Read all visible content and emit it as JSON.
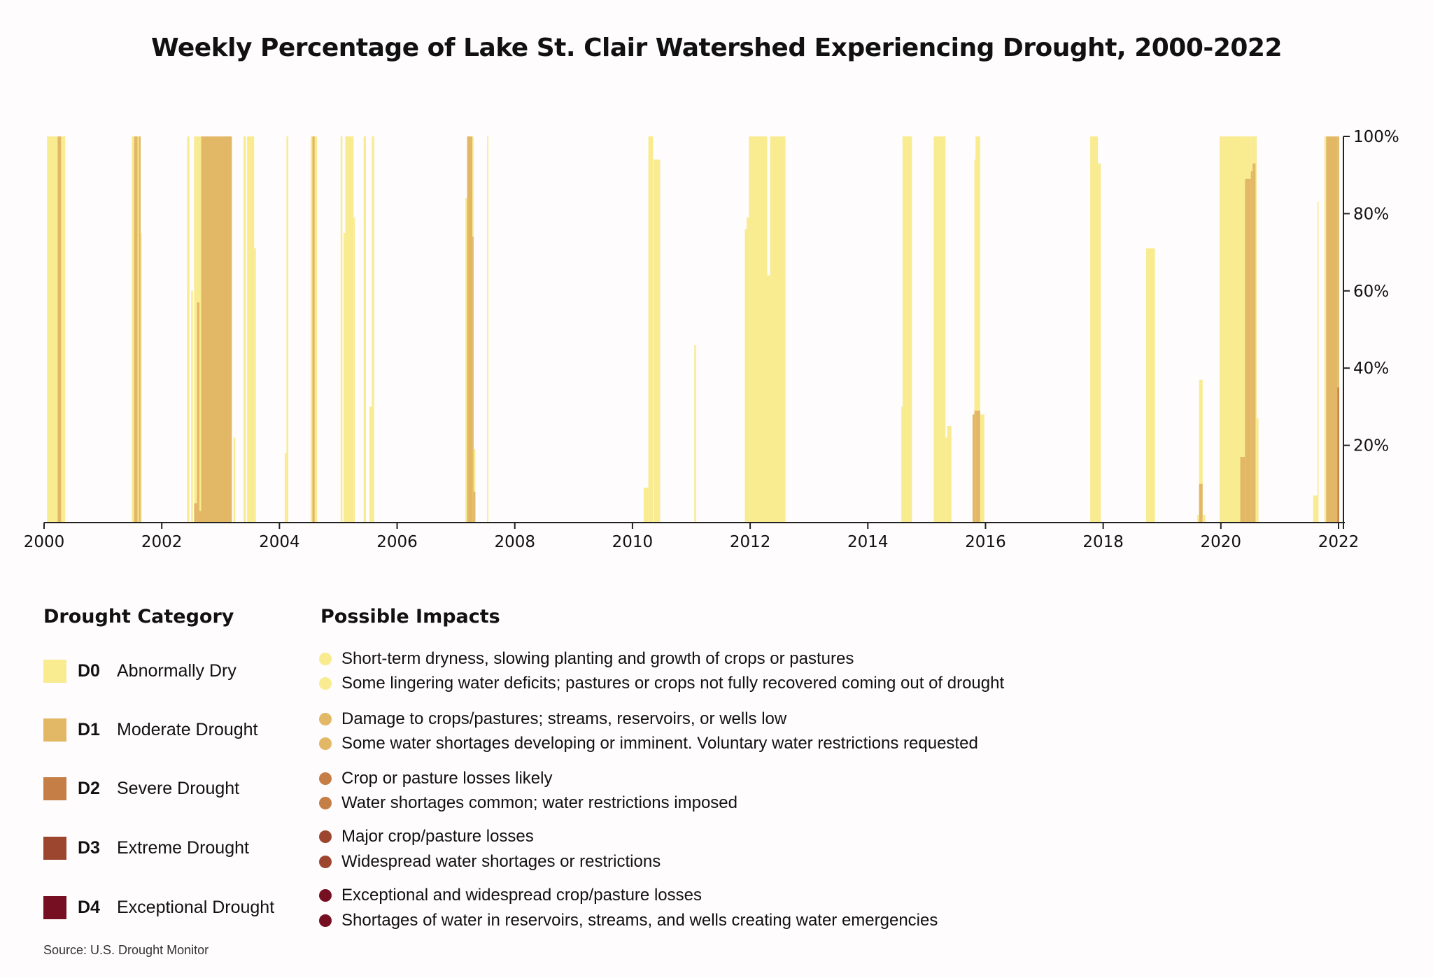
{
  "chart_data": {
    "type": "bar",
    "title": "Weekly Percentage of Lake St. Clair Watershed Experiencing Drought, 2000-2022",
    "xlabel": "",
    "ylabel": "",
    "xlim": [
      2000,
      2022
    ],
    "ylim": [
      0,
      100
    ],
    "x_ticks": [
      "2000",
      "2002",
      "2004",
      "2006",
      "2008",
      "2010",
      "2012",
      "2014",
      "2016",
      "2018",
      "2020",
      "2022"
    ],
    "y_ticks": [
      "20%",
      "40%",
      "60%",
      "80%",
      "100%"
    ],
    "y_axis_side": "right",
    "grid": false,
    "stacked_overlay": true,
    "series_order": [
      "D0",
      "D1",
      "D2"
    ],
    "segment_fields": [
      "start_year",
      "end_year",
      "D0_pct",
      "D1_pct",
      "D2_pct"
    ],
    "segments": [
      [
        2000.05,
        2000.23,
        100,
        0,
        0
      ],
      [
        2000.23,
        2000.29,
        100,
        100,
        0
      ],
      [
        2000.29,
        2000.36,
        100,
        0,
        0
      ],
      [
        2001.49,
        2001.53,
        100,
        0,
        0
      ],
      [
        2001.53,
        2001.59,
        100,
        100,
        0
      ],
      [
        2001.59,
        2001.61,
        100,
        0,
        0
      ],
      [
        2001.61,
        2001.64,
        100,
        100,
        0
      ],
      [
        2001.64,
        2001.66,
        75,
        0,
        0
      ],
      [
        2002.43,
        2002.47,
        100,
        0,
        0
      ],
      [
        2002.5,
        2002.53,
        60,
        0,
        0
      ],
      [
        2002.55,
        2002.6,
        100,
        5,
        0
      ],
      [
        2002.6,
        2002.64,
        100,
        57,
        0
      ],
      [
        2002.64,
        2002.67,
        100,
        3,
        0
      ],
      [
        2002.67,
        2003.19,
        100,
        100,
        0
      ],
      [
        2003.22,
        2003.25,
        22,
        0,
        0
      ],
      [
        2003.39,
        2003.43,
        100,
        0,
        0
      ],
      [
        2003.45,
        2003.57,
        100,
        0,
        0
      ],
      [
        2003.57,
        2003.6,
        71,
        0,
        0
      ],
      [
        2004.09,
        2004.12,
        18,
        0,
        0
      ],
      [
        2004.12,
        2004.15,
        100,
        0,
        0
      ],
      [
        2004.53,
        2004.56,
        100,
        0,
        0
      ],
      [
        2004.56,
        2004.6,
        100,
        100,
        0
      ],
      [
        2004.6,
        2004.64,
        100,
        0,
        0
      ],
      [
        2005.04,
        2005.07,
        100,
        0,
        0
      ],
      [
        2005.09,
        2005.12,
        75,
        0,
        0
      ],
      [
        2005.12,
        2005.26,
        100,
        0,
        0
      ],
      [
        2005.26,
        2005.28,
        79,
        0,
        0
      ],
      [
        2005.43,
        2005.47,
        100,
        0,
        0
      ],
      [
        2005.53,
        2005.57,
        30,
        0,
        0
      ],
      [
        2005.57,
        2005.61,
        100,
        0,
        0
      ],
      [
        2007.16,
        2007.19,
        84,
        0,
        0
      ],
      [
        2007.19,
        2007.28,
        100,
        100,
        0
      ],
      [
        2007.28,
        2007.3,
        100,
        74,
        0
      ],
      [
        2007.3,
        2007.33,
        19,
        8,
        0
      ],
      [
        2007.53,
        2007.55,
        100,
        0,
        0
      ],
      [
        2010.19,
        2010.27,
        9,
        0,
        0
      ],
      [
        2010.27,
        2010.35,
        100,
        0,
        0
      ],
      [
        2010.36,
        2010.47,
        94,
        0,
        0
      ],
      [
        2011.05,
        2011.08,
        46,
        0,
        0
      ],
      [
        2011.91,
        2011.94,
        76,
        0,
        0
      ],
      [
        2011.94,
        2011.98,
        79,
        0,
        0
      ],
      [
        2011.98,
        2012.29,
        100,
        0,
        0
      ],
      [
        2012.29,
        2012.34,
        64,
        0,
        0
      ],
      [
        2012.34,
        2012.6,
        100,
        0,
        0
      ],
      [
        2014.57,
        2014.59,
        30,
        0,
        0
      ],
      [
        2014.59,
        2014.75,
        100,
        0,
        0
      ],
      [
        2015.12,
        2015.32,
        100,
        0,
        0
      ],
      [
        2015.32,
        2015.35,
        22,
        0,
        0
      ],
      [
        2015.35,
        2015.42,
        25,
        0,
        0
      ],
      [
        2015.78,
        2015.81,
        28,
        28,
        0
      ],
      [
        2015.81,
        2015.83,
        94,
        29,
        0
      ],
      [
        2015.83,
        2015.91,
        100,
        29,
        0
      ],
      [
        2015.91,
        2015.98,
        28,
        0,
        0
      ],
      [
        2017.78,
        2017.91,
        100,
        0,
        0
      ],
      [
        2017.91,
        2017.96,
        93,
        0,
        0
      ],
      [
        2018.73,
        2018.88,
        71,
        0,
        0
      ],
      [
        2019.6,
        2019.63,
        2,
        0,
        0
      ],
      [
        2019.63,
        2019.69,
        37,
        10,
        0
      ],
      [
        2019.69,
        2019.74,
        2,
        0,
        0
      ],
      [
        2019.98,
        2020.33,
        100,
        0,
        0
      ],
      [
        2020.33,
        2020.41,
        100,
        17,
        0
      ],
      [
        2020.41,
        2020.51,
        100,
        89,
        0
      ],
      [
        2020.51,
        2020.54,
        100,
        91,
        0
      ],
      [
        2020.54,
        2020.59,
        100,
        93,
        0
      ],
      [
        2020.59,
        2020.61,
        100,
        0,
        0
      ],
      [
        2020.61,
        2020.64,
        27,
        0,
        0
      ],
      [
        2021.57,
        2021.64,
        7,
        0,
        0
      ],
      [
        2021.64,
        2021.66,
        83,
        0,
        0
      ],
      [
        2021.76,
        2021.79,
        100,
        0,
        0
      ],
      [
        2021.79,
        2021.98,
        100,
        100,
        0
      ],
      [
        2021.98,
        2022.01,
        100,
        100,
        35
      ]
    ]
  },
  "colors": {
    "D0": "#f9eb90",
    "D1": "#e2b766",
    "D2": "#c57e45",
    "D3": "#9c4630",
    "D4": "#760f22"
  },
  "legend": {
    "heading": "Drought Category",
    "categories": [
      {
        "code": "D0",
        "name": "Abnormally Dry"
      },
      {
        "code": "D1",
        "name": "Moderate Drought"
      },
      {
        "code": "D2",
        "name": "Severe Drought"
      },
      {
        "code": "D3",
        "name": "Extreme Drought"
      },
      {
        "code": "D4",
        "name": "Exceptional Drought"
      }
    ]
  },
  "impacts": {
    "heading": "Possible Impacts",
    "items": [
      {
        "cat": "D0",
        "text": "Short-term dryness, slowing planting and growth of crops or pastures"
      },
      {
        "cat": "D0",
        "text": "Some lingering water deficits; pastures or crops not fully recovered coming out of drought"
      },
      {
        "cat": "D1",
        "text": "Damage to crops/pastures; streams, reservoirs, or wells low"
      },
      {
        "cat": "D1",
        "text": "Some water shortages developing or imminent. Voluntary water restrictions requested"
      },
      {
        "cat": "D2",
        "text": "Crop or pasture losses likely"
      },
      {
        "cat": "D2",
        "text": "Water shortages common; water restrictions imposed"
      },
      {
        "cat": "D3",
        "text": "Major crop/pasture losses"
      },
      {
        "cat": "D3",
        "text": "Widespread water shortages or restrictions"
      },
      {
        "cat": "D4",
        "text": "Exceptional and widespread crop/pasture losses"
      },
      {
        "cat": "D4",
        "text": "Shortages of water in reservoirs, streams, and wells creating water emergencies"
      }
    ]
  },
  "source": "Source: U.S. Drought Monitor"
}
